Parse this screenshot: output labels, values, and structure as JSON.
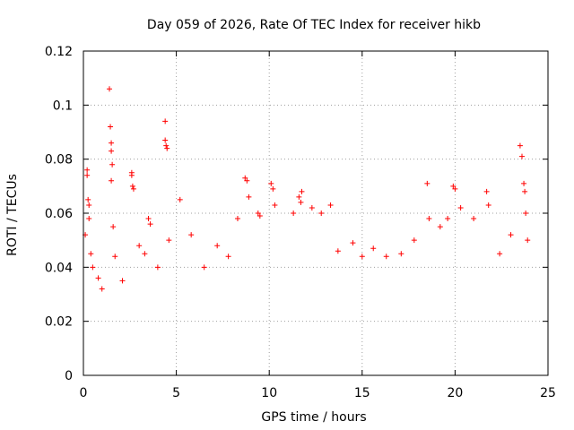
{
  "chart_data": {
    "type": "scatter",
    "title": "Day 059 of 2026, Rate Of TEC Index for receiver hikb",
    "xlabel": "GPS time / hours",
    "ylabel": "ROTI / TECUs",
    "xlim": [
      0,
      25
    ],
    "ylim": [
      0,
      0.12
    ],
    "xticks": [
      "0",
      "5",
      "10",
      "15",
      "20",
      "25"
    ],
    "yticks": [
      "0",
      "0.02",
      "0.04",
      "0.06",
      "0.08",
      "0.1",
      "0.12"
    ],
    "grid": true,
    "marker": "plus",
    "series_color": "#ff0000",
    "series": [
      {
        "points": [
          [
            0.1,
            0.052
          ],
          [
            0.2,
            0.076
          ],
          [
            0.2,
            0.074
          ],
          [
            0.25,
            0.065
          ],
          [
            0.3,
            0.063
          ],
          [
            0.3,
            0.058
          ],
          [
            0.4,
            0.045
          ],
          [
            0.5,
            0.04
          ],
          [
            0.8,
            0.036
          ],
          [
            1.0,
            0.032
          ],
          [
            1.4,
            0.106
          ],
          [
            1.45,
            0.092
          ],
          [
            1.5,
            0.086
          ],
          [
            1.5,
            0.083
          ],
          [
            1.55,
            0.078
          ],
          [
            1.5,
            0.072
          ],
          [
            1.6,
            0.055
          ],
          [
            1.7,
            0.044
          ],
          [
            2.1,
            0.035
          ],
          [
            2.6,
            0.075
          ],
          [
            2.6,
            0.074
          ],
          [
            2.65,
            0.07
          ],
          [
            2.7,
            0.069
          ],
          [
            3.0,
            0.048
          ],
          [
            3.3,
            0.045
          ],
          [
            3.5,
            0.058
          ],
          [
            3.6,
            0.056
          ],
          [
            4.0,
            0.04
          ],
          [
            4.4,
            0.094
          ],
          [
            4.4,
            0.087
          ],
          [
            4.45,
            0.085
          ],
          [
            4.5,
            0.084
          ],
          [
            4.6,
            0.05
          ],
          [
            5.2,
            0.065
          ],
          [
            5.8,
            0.052
          ],
          [
            6.5,
            0.04
          ],
          [
            7.2,
            0.048
          ],
          [
            7.8,
            0.044
          ],
          [
            8.3,
            0.058
          ],
          [
            8.7,
            0.073
          ],
          [
            8.8,
            0.072
          ],
          [
            8.9,
            0.066
          ],
          [
            9.4,
            0.06
          ],
          [
            9.5,
            0.059
          ],
          [
            10.1,
            0.071
          ],
          [
            10.2,
            0.069
          ],
          [
            10.3,
            0.063
          ],
          [
            11.3,
            0.06
          ],
          [
            11.6,
            0.066
          ],
          [
            11.7,
            0.064
          ],
          [
            11.75,
            0.068
          ],
          [
            12.3,
            0.062
          ],
          [
            12.8,
            0.06
          ],
          [
            13.3,
            0.063
          ],
          [
            13.7,
            0.046
          ],
          [
            14.5,
            0.049
          ],
          [
            15.0,
            0.044
          ],
          [
            15.6,
            0.047
          ],
          [
            16.3,
            0.044
          ],
          [
            17.1,
            0.045
          ],
          [
            17.8,
            0.05
          ],
          [
            18.5,
            0.071
          ],
          [
            18.6,
            0.058
          ],
          [
            19.2,
            0.055
          ],
          [
            19.6,
            0.058
          ],
          [
            19.9,
            0.07
          ],
          [
            20.0,
            0.069
          ],
          [
            20.3,
            0.062
          ],
          [
            21.0,
            0.058
          ],
          [
            21.7,
            0.068
          ],
          [
            21.8,
            0.063
          ],
          [
            22.4,
            0.045
          ],
          [
            23.0,
            0.052
          ],
          [
            23.5,
            0.085
          ],
          [
            23.6,
            0.081
          ],
          [
            23.7,
            0.071
          ],
          [
            23.75,
            0.068
          ],
          [
            23.8,
            0.06
          ],
          [
            23.9,
            0.05
          ]
        ]
      }
    ]
  }
}
